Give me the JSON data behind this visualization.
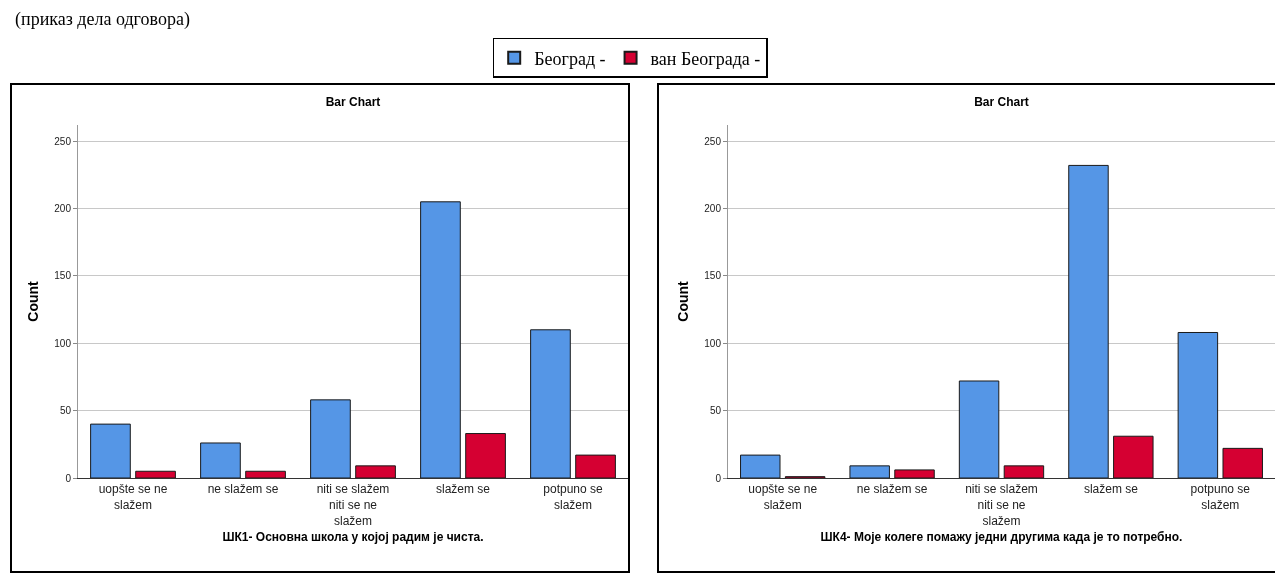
{
  "chart_data": [
    {
      "type": "bar",
      "title": "Bar Chart",
      "xlabel": "ШК1- Основна школа у којој радим је чиста.",
      "ylabel": "Count",
      "annotations": [
        "(приказ дела одговора)"
      ],
      "categories": [
        "uopšte se ne slažem",
        "ne slažem se",
        "niti se slažem niti se ne slažem",
        "slažem se",
        "potpuno se slažem"
      ],
      "series": [
        {
          "name": "Београд -",
          "color": "#5596e6",
          "values": [
            40,
            26,
            58,
            205,
            110
          ]
        },
        {
          "name": "ван Београда -",
          "color": "#d50032",
          "values": [
            5,
            5,
            9,
            33,
            17
          ]
        }
      ],
      "ylim": [
        0,
        262
      ],
      "yticks": [
        0,
        50,
        100,
        150,
        200,
        250
      ],
      "grid": "y",
      "legend": "top"
    },
    {
      "type": "bar",
      "title": "Bar Chart",
      "xlabel": "ШК4- Моје колеге помажу једни другима када је то потребно.",
      "ylabel": "Count",
      "categories": [
        "uopšte se ne slažem",
        "ne slažem se",
        "niti se slažem niti se ne slažem",
        "slažem se",
        "potpuno se slažem"
      ],
      "series": [
        {
          "color": "#5596e6",
          "values": [
            17,
            9,
            72,
            232,
            108
          ]
        },
        {
          "color": "#d50032",
          "values": [
            1,
            6,
            9,
            31,
            22
          ]
        }
      ],
      "ylim": [
        0,
        262
      ],
      "yticks": [
        0,
        50,
        100,
        150,
        200,
        250
      ],
      "grid": "y"
    }
  ]
}
